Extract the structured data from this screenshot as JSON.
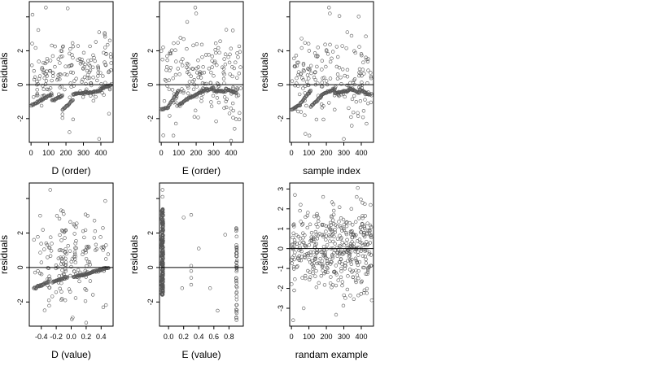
{
  "figure": {
    "layout": "2 rows x 3 columns of residual scatter plots",
    "background": "#ffffff",
    "point_color": "#555555",
    "line_color": "#000000"
  },
  "chart_data": [
    {
      "id": "d-order",
      "type": "scatter",
      "xlabel": "D (order)",
      "ylabel": "residuals",
      "xlim": [
        -10,
        470
      ],
      "ylim": [
        -3.4,
        4.9
      ],
      "xticks": [
        0,
        100,
        200,
        300,
        400
      ],
      "yticks": [
        -2,
        0,
        2,
        4
      ],
      "xtick_labels": [
        "0",
        "100",
        "200",
        "300",
        "400"
      ],
      "ytick_labels": [
        "-2",
        "0",
        "2",
        ""
      ],
      "reference_line": 0,
      "trend": {
        "type": "piecewise-linear",
        "segments": [
          [
            0,
            60,
            -1.25,
            -0.9
          ],
          [
            60,
            120,
            -0.9,
            -0.55
          ],
          [
            120,
            180,
            -0.95,
            -0.65
          ],
          [
            180,
            240,
            -1.5,
            -0.9
          ],
          [
            240,
            320,
            -0.55,
            -0.45
          ],
          [
            320,
            400,
            -0.5,
            -0.35
          ],
          [
            400,
            460,
            -0.25,
            0.0
          ]
        ]
      },
      "scatter": {
        "n": 180,
        "x_range": [
          0,
          460
        ],
        "y_center": 0.45,
        "y_spread": 1.2,
        "extreme_highs": [
          [
            85,
            4.55
          ],
          [
            210,
            4.5
          ],
          [
            390,
            3.1
          ]
        ],
        "extreme_lows": [
          [
            220,
            -2.8
          ],
          [
            390,
            -3.2
          ],
          [
            180,
            -1.75
          ]
        ]
      }
    },
    {
      "id": "e-order",
      "type": "scatter",
      "xlabel": "E (order)",
      "ylabel": "residuals",
      "xlim": [
        -10,
        470
      ],
      "ylim": [
        -3.4,
        4.9
      ],
      "xticks": [
        0,
        100,
        200,
        300,
        400
      ],
      "yticks": [
        -2,
        0,
        2,
        4
      ],
      "xtick_labels": [
        "0",
        "100",
        "200",
        "300",
        "400"
      ],
      "ytick_labels": [
        "-2",
        "0",
        "2",
        ""
      ],
      "reference_line": 0,
      "trend": {
        "type": "piecewise-linear",
        "segments": [
          [
            0,
            40,
            -1.45,
            -1.35
          ],
          [
            40,
            100,
            -1.3,
            -0.35
          ],
          [
            100,
            170,
            -1.2,
            -0.7
          ],
          [
            170,
            260,
            -0.75,
            -0.25
          ],
          [
            260,
            300,
            -0.35,
            -0.2
          ],
          [
            300,
            370,
            -0.35,
            -0.4
          ],
          [
            370,
            430,
            -0.25,
            -0.5
          ]
        ]
      },
      "scatter": {
        "n": 180,
        "x_range": [
          0,
          460
        ],
        "y_center": 0.4,
        "y_spread": 1.25,
        "extreme_highs": [
          [
            195,
            4.55
          ],
          [
            200,
            4.2
          ],
          [
            410,
            3.2
          ]
        ],
        "extreme_lows": [
          [
            400,
            -3.3
          ],
          [
            420,
            -2.6
          ],
          [
            190,
            -1.9
          ]
        ]
      }
    },
    {
      "id": "sample-index",
      "type": "scatter",
      "xlabel": "sample index",
      "ylabel": "residuals",
      "xlim": [
        -10,
        470
      ],
      "ylim": [
        -3.4,
        4.9
      ],
      "xticks": [
        0,
        100,
        200,
        300,
        400
      ],
      "yticks": [
        -2,
        0,
        2,
        4
      ],
      "xtick_labels": [
        "0",
        "100",
        "200",
        "300",
        "400"
      ],
      "ytick_labels": [
        "-2",
        "0",
        "2",
        ""
      ],
      "reference_line": 0,
      "trend": {
        "type": "piecewise-linear",
        "segments": [
          [
            0,
            50,
            -1.45,
            -1.2
          ],
          [
            50,
            110,
            -1.1,
            -0.35
          ],
          [
            110,
            170,
            -1.3,
            -0.7
          ],
          [
            170,
            250,
            -0.6,
            -0.25
          ],
          [
            250,
            330,
            -0.5,
            -0.35
          ],
          [
            330,
            390,
            -0.2,
            -0.5
          ],
          [
            390,
            450,
            -0.3,
            -0.6
          ]
        ]
      },
      "scatter": {
        "n": 180,
        "x_range": [
          0,
          460
        ],
        "y_center": 0.4,
        "y_spread": 1.25,
        "extreme_highs": [
          [
            215,
            4.55
          ],
          [
            220,
            4.2
          ],
          [
            320,
            3.1
          ]
        ],
        "extreme_lows": [
          [
            80,
            -2.9
          ],
          [
            300,
            -3.2
          ],
          [
            430,
            -2.3
          ]
        ]
      }
    },
    {
      "id": "d-value",
      "type": "scatter",
      "xlabel": "D (value)",
      "ylabel": "residuals",
      "xlim": [
        -0.56,
        0.56
      ],
      "ylim": [
        -3.4,
        4.9
      ],
      "xticks": [
        -0.4,
        -0.2,
        0.0,
        0.2,
        0.4
      ],
      "yticks": [
        -2,
        0,
        2,
        4
      ],
      "xtick_labels": [
        "-0.4",
        "-0.2",
        "0.0",
        "0.2",
        "0.4"
      ],
      "ytick_labels": [
        "-2",
        "0",
        "2",
        ""
      ],
      "reference_line": 0,
      "trend": {
        "type": "piecewise-linear",
        "segments": [
          [
            -0.5,
            -0.3,
            -1.2,
            -0.85
          ],
          [
            -0.25,
            -0.05,
            -0.85,
            -0.55
          ],
          [
            0.03,
            0.25,
            -0.55,
            -0.35
          ],
          [
            0.25,
            0.5,
            -0.3,
            0.0
          ]
        ]
      },
      "scatter": {
        "n": 170,
        "x_range": [
          -0.5,
          0.5
        ],
        "y_center": 0.45,
        "y_spread": 1.2,
        "column_bias": [
          -0.3,
          -0.13,
          -0.08,
          0.05,
          0.2,
          0.42
        ],
        "extreme_highs": [
          [
            -0.28,
            4.5
          ],
          [
            -0.1,
            3.1
          ],
          [
            0.22,
            3.0
          ]
        ],
        "extreme_lows": [
          [
            0.02,
            -2.9
          ],
          [
            0.2,
            -3.2
          ],
          [
            -0.08,
            -1.9
          ]
        ]
      }
    },
    {
      "id": "e-value",
      "type": "scatter",
      "xlabel": "E (value)",
      "ylabel": "residuals",
      "xlim": [
        -0.12,
        0.99
      ],
      "ylim": [
        -3.4,
        4.9
      ],
      "xticks": [
        0.0,
        0.2,
        0.4,
        0.6,
        0.8
      ],
      "yticks": [
        -2,
        0,
        2,
        4
      ],
      "xtick_labels": [
        "0.0",
        "0.2",
        "0.4",
        "0.6",
        "0.8"
      ],
      "ytick_labels": [
        "-2",
        "0",
        "2",
        ""
      ],
      "reference_line": 0,
      "columns": [
        {
          "x": -0.08,
          "n": 230,
          "y_range": [
            -1.6,
            3.4
          ],
          "width": 0.02
        },
        {
          "x": 0.9,
          "n": 45,
          "y_range": [
            -3.0,
            2.3
          ],
          "width": 0.01
        }
      ],
      "scatter": {
        "points": [
          [
            -0.08,
            4.5
          ],
          [
            -0.08,
            4.1
          ],
          [
            0.2,
            2.9
          ],
          [
            0.3,
            3.05
          ],
          [
            0.3,
            0.1
          ],
          [
            0.3,
            -0.2
          ],
          [
            0.3,
            -0.6
          ],
          [
            0.18,
            -1.2
          ],
          [
            0.3,
            -1.0
          ],
          [
            0.4,
            1.1
          ],
          [
            0.55,
            -1.2
          ],
          [
            0.65,
            -2.5
          ],
          [
            0.75,
            1.9
          ],
          [
            0.9,
            -3.05
          ],
          [
            0.9,
            2.2
          ]
        ]
      }
    },
    {
      "id": "random-example",
      "type": "scatter",
      "xlabel": "randam example",
      "ylabel": "residuals",
      "xlim": [
        -10,
        470
      ],
      "ylim": [
        -3.9,
        3.3
      ],
      "xticks": [
        0,
        100,
        200,
        300,
        400
      ],
      "yticks": [
        -3,
        -2,
        -1,
        0,
        1,
        2,
        3
      ],
      "xtick_labels": [
        "0",
        "100",
        "200",
        "300",
        "400"
      ],
      "ytick_labels": [
        "-3",
        "-2",
        "-1",
        "0",
        "1",
        "2",
        "3"
      ],
      "reference_line": 0,
      "scatter": {
        "n": 420,
        "x_range": [
          0,
          460
        ],
        "y_center": 0.0,
        "y_spread": 1.0,
        "extreme_highs": [
          [
            380,
            3.05
          ],
          [
            20,
            2.7
          ]
        ],
        "extreme_lows": [
          [
            10,
            -3.6
          ],
          [
            70,
            -3.0
          ],
          [
            460,
            -2.6
          ]
        ]
      }
    }
  ]
}
